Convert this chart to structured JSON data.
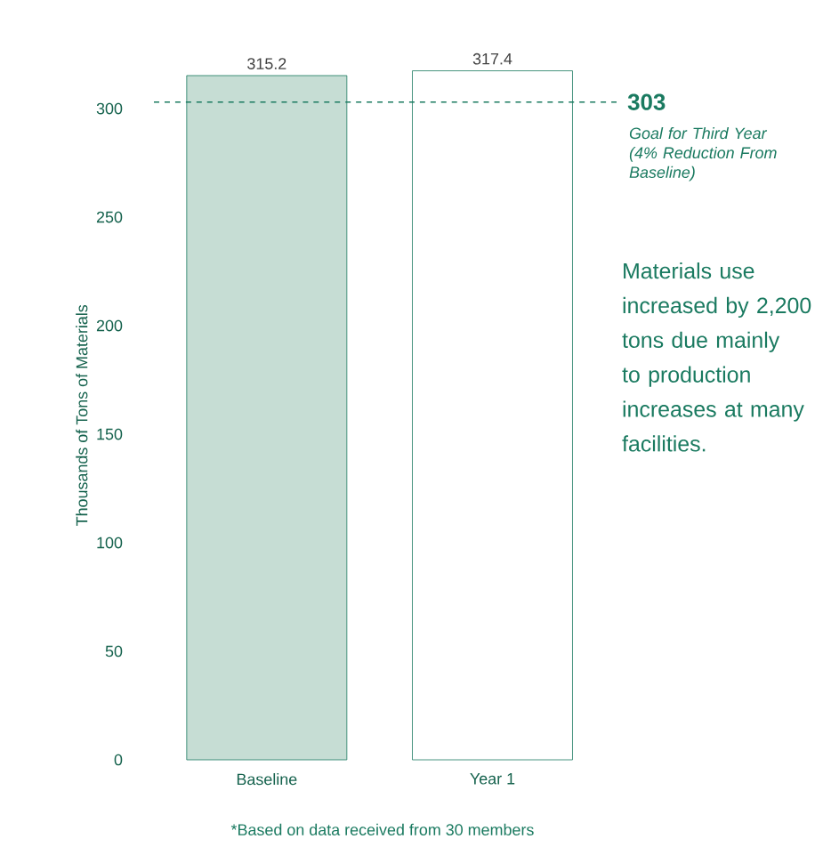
{
  "chart_data": {
    "type": "bar",
    "ylabel": "Thousands of Tons of Materials",
    "categories": [
      "Baseline",
      "Year 1"
    ],
    "values": [
      315.2,
      317.4
    ],
    "colors": [
      "#c6ddd4",
      "#ffffff"
    ],
    "ylim": [
      0,
      317.4
    ],
    "yticks": [
      0,
      50,
      100,
      150,
      200,
      250,
      300
    ],
    "data_labels": true,
    "grid": false,
    "ref_lines": [
      {
        "axis": "y",
        "value": 303,
        "label": "303",
        "color": "#1a7a60",
        "line_style": "dashed"
      }
    ],
    "annotations": [
      "Goal for Third Year (4% Reduction From Baseline)",
      "Materials use increased by 2,200 tons due mainly to production increases at many facilities.",
      "*Based on data received from 30 members"
    ]
  }
}
